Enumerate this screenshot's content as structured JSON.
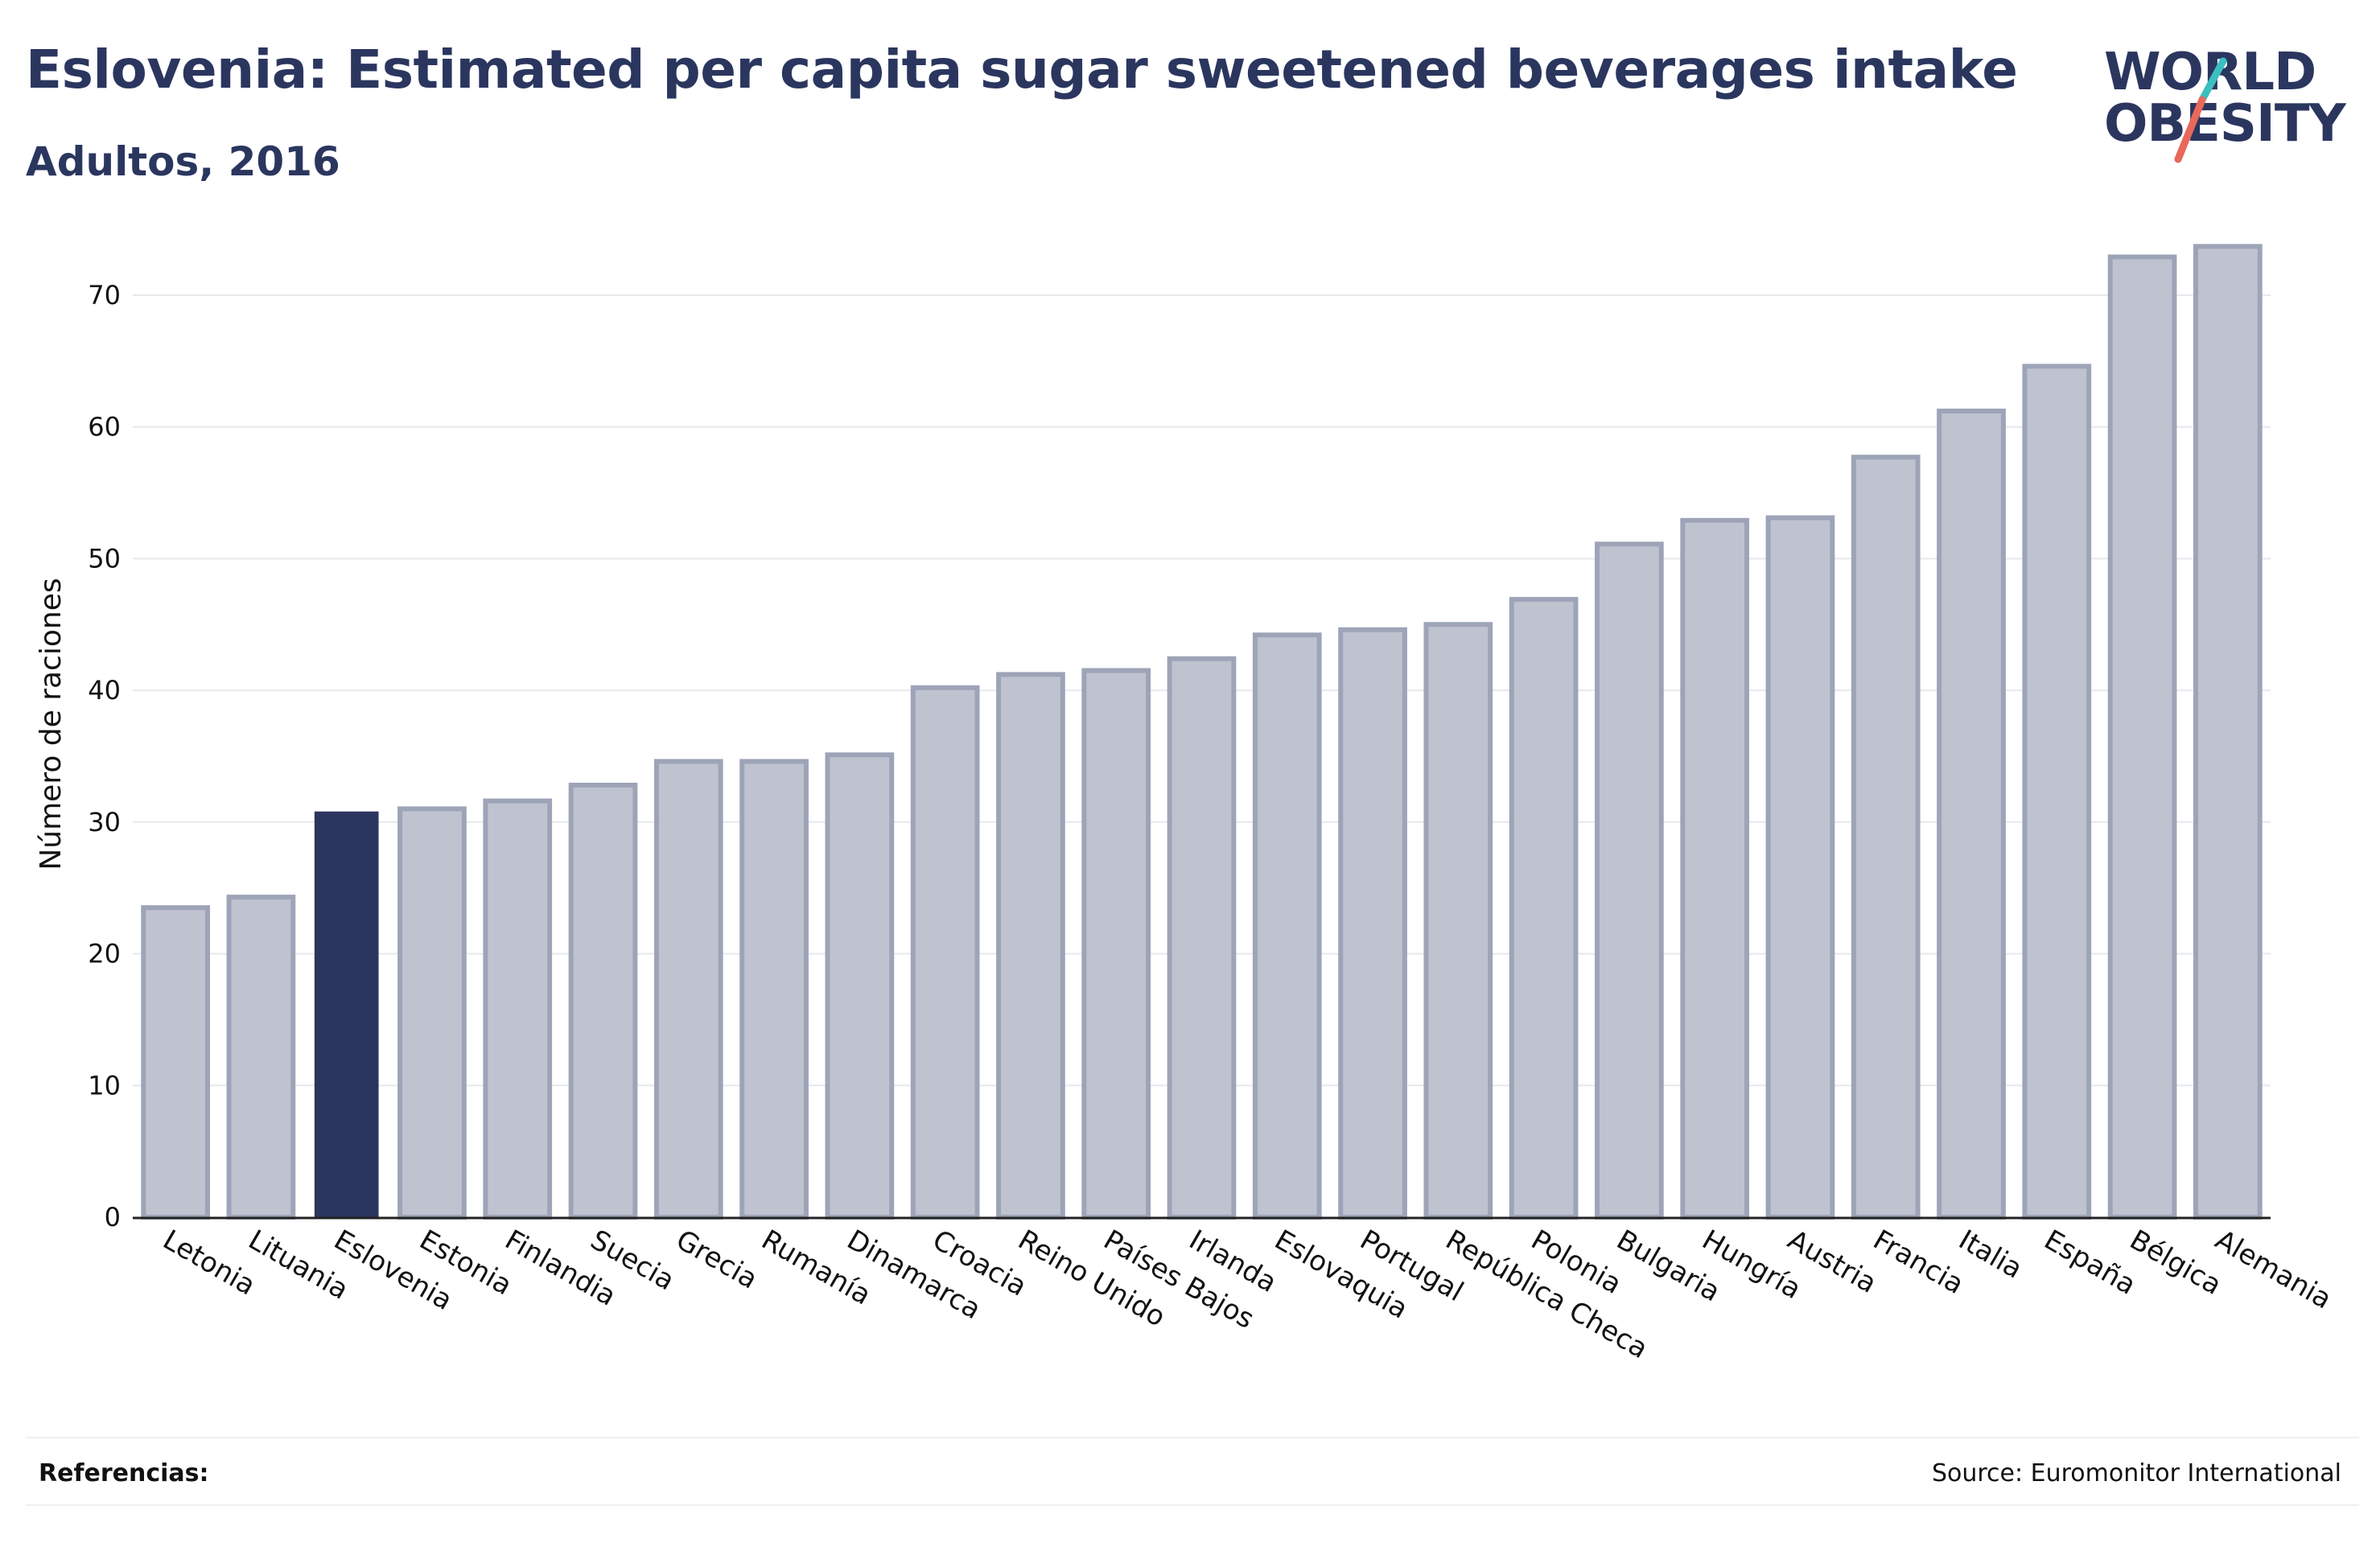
{
  "header": {
    "title": "Eslovenia: Estimated per capita sugar sweetened beverages intake",
    "subtitle": "Adultos, 2016"
  },
  "logo": {
    "line1": "WORLD",
    "line2": "OBESITY",
    "accent_teal": "#3bbfbf",
    "accent_red": "#e8685a"
  },
  "footer": {
    "references_label": "Referencias:",
    "source": "Source: Euromonitor International"
  },
  "colors": {
    "highlight": "#2b365f",
    "bar_fill": "#bfc3cf",
    "bar_stroke": "#9ea4b8",
    "grid": "#e6e8ec",
    "text": "#111111"
  },
  "chart_data": {
    "type": "bar",
    "title": "Eslovenia: Estimated per capita sugar sweetened beverages intake",
    "subtitle": "Adultos, 2016",
    "xlabel": "",
    "ylabel": "Número de raciones",
    "ylim": [
      0,
      75
    ],
    "yticks": [
      0,
      10,
      20,
      30,
      40,
      50,
      60,
      70
    ],
    "grid": true,
    "highlight": "Eslovenia",
    "categories": [
      "Letonia",
      "Lituania",
      "Eslovenia",
      "Estonia",
      "Finlandia",
      "Suecia",
      "Grecia",
      "Rumanía",
      "Dinamarca",
      "Croacia",
      "Reino Unido",
      "Países Bajos",
      "Irlanda",
      "Eslovaquia",
      "Portugal",
      "República Checa",
      "Polonia",
      "Bulgaria",
      "Hungría",
      "Austria",
      "Francia",
      "Italia",
      "España",
      "Bélgica",
      "Alemania"
    ],
    "values": [
      23.5,
      24.3,
      30.8,
      31.0,
      31.6,
      32.8,
      34.6,
      34.6,
      35.1,
      40.2,
      41.2,
      41.5,
      42.4,
      44.2,
      44.6,
      45.0,
      46.9,
      51.1,
      52.9,
      53.1,
      57.7,
      61.2,
      64.6,
      72.9,
      73.7
    ]
  }
}
